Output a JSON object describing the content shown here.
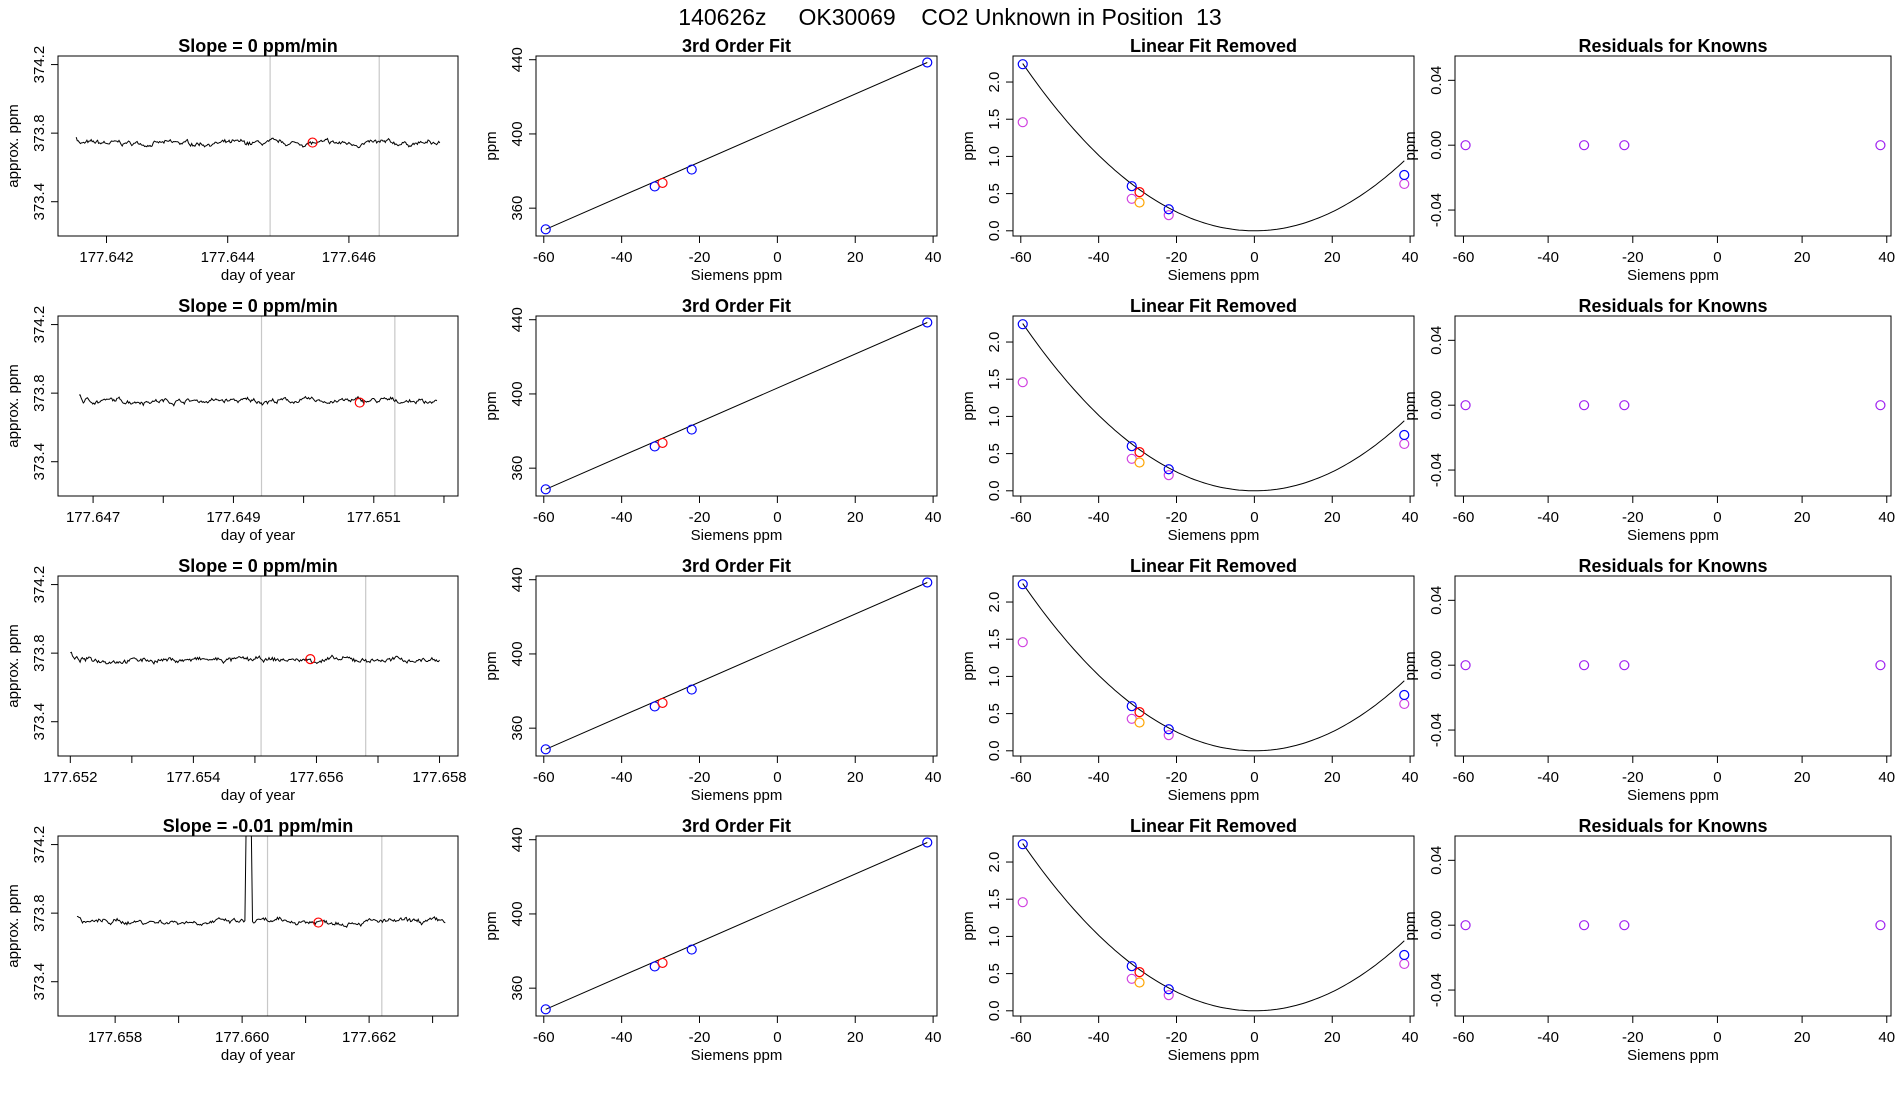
{
  "page_title": "140626z     OK30069    CO2 Unknown in Position  13",
  "colors": {
    "trace": "#000000",
    "marker_highlight": "#ff0000",
    "window_line": "#c8c8c8",
    "standards": "#0000ff",
    "magenta_points": "#d040e0",
    "orange_points": "#ffa500",
    "residual_points": "#a020f0"
  },
  "chart_data": [
    {
      "row": 1,
      "type": "line",
      "title": "Slope =  0  ppm/min",
      "xlabel": "day of year",
      "ylabel": "approx. ppm",
      "xlim": [
        177.6412,
        177.6478
      ],
      "ylim": [
        373.2,
        374.25
      ],
      "xticks": [
        177.642,
        177.644,
        177.646
      ],
      "xtick_labels": [
        "177.642",
        "177.644",
        "177.646"
      ],
      "yticks": [
        373.4,
        373.8,
        374.2
      ],
      "ytick_labels": [
        "373.4",
        "373.8",
        "374.2"
      ],
      "x_start": 177.6415,
      "x_end": 177.6475,
      "baseline": 373.74,
      "window_lines": [
        177.6447,
        177.6465
      ],
      "marker": {
        "x": 177.6454,
        "y": 373.745
      },
      "spike": null
    },
    {
      "row": 2,
      "type": "line",
      "title": "Slope =  0  ppm/min",
      "xlabel": "day of year",
      "ylabel": "approx. ppm",
      "xlim": [
        177.6465,
        177.6522
      ],
      "ylim": [
        373.2,
        374.25
      ],
      "xticks": [
        177.647,
        177.648,
        177.649,
        177.65,
        177.651,
        177.652
      ],
      "xtick_labels": [
        "177.647",
        "",
        "177.649",
        "",
        "177.651",
        ""
      ],
      "yticks": [
        373.4,
        373.8,
        374.2
      ],
      "ytick_labels": [
        "373.4",
        "373.8",
        "374.2"
      ],
      "x_start": 177.6468,
      "x_end": 177.6519,
      "baseline": 373.755,
      "window_lines": [
        177.6494,
        177.6513
      ],
      "marker": {
        "x": 177.6508,
        "y": 373.745
      },
      "spike": null
    },
    {
      "row": 3,
      "type": "line",
      "title": "Slope =  0  ppm/min",
      "xlabel": "day of year",
      "ylabel": "approx. ppm",
      "xlim": [
        177.6518,
        177.6583
      ],
      "ylim": [
        373.2,
        374.25
      ],
      "xticks": [
        177.652,
        177.653,
        177.654,
        177.655,
        177.656,
        177.657,
        177.658
      ],
      "xtick_labels": [
        "177.652",
        "",
        "177.654",
        "",
        "177.656",
        "",
        "177.658"
      ],
      "yticks": [
        373.4,
        373.8,
        374.2
      ],
      "ytick_labels": [
        "373.4",
        "373.8",
        "374.2"
      ],
      "x_start": 177.652,
      "x_end": 177.658,
      "baseline": 373.76,
      "window_lines": [
        177.6551,
        177.6568
      ],
      "marker": {
        "x": 177.6559,
        "y": 373.765
      },
      "spike": null
    },
    {
      "row": 4,
      "type": "line",
      "title": "Slope =  -0.01  ppm/min",
      "xlabel": "day of year",
      "ylabel": "approx. ppm",
      "xlim": [
        177.6571,
        177.6634
      ],
      "ylim": [
        373.2,
        374.25
      ],
      "xticks": [
        177.658,
        177.659,
        177.66,
        177.661,
        177.662,
        177.663
      ],
      "xtick_labels": [
        "177.658",
        "",
        "177.660",
        "",
        "177.662",
        ""
      ],
      "yticks": [
        373.4,
        373.8,
        374.2
      ],
      "ytick_labels": [
        "373.4",
        "373.8",
        "374.2"
      ],
      "x_start": 177.6574,
      "x_end": 177.6632,
      "baseline": 373.75,
      "window_lines": [
        177.6604,
        177.6622
      ],
      "marker": {
        "x": 177.6612,
        "y": 373.745
      },
      "spike": {
        "x1": 177.66005,
        "x2": 177.66015
      }
    },
    {
      "type": "scatter",
      "title": "3rd Order Fit",
      "xlabel": "Siemens ppm",
      "ylabel": "ppm",
      "xlim": [
        -62,
        41
      ],
      "ylim": [
        345,
        442
      ],
      "xticks": [
        -60,
        -40,
        -20,
        0,
        20,
        40
      ],
      "yticks": [
        360,
        400,
        440
      ],
      "fit_line": [
        [
          -59.5,
          348.6
        ],
        [
          38.5,
          438.5
        ]
      ],
      "blue_points": [
        [
          -59.5,
          348.6
        ],
        [
          -31.5,
          371.7
        ],
        [
          -22,
          380.8
        ],
        [
          38.5,
          438.5
        ]
      ],
      "red_points": [
        [
          -29.5,
          373.6
        ]
      ]
    },
    {
      "type": "scatter",
      "title": "Linear Fit Removed",
      "xlabel": "Siemens ppm",
      "ylabel": "ppm",
      "xlim": [
        -62,
        41
      ],
      "ylim": [
        -0.07,
        2.35
      ],
      "xticks": [
        -60,
        -40,
        -20,
        0,
        20,
        40
      ],
      "yticks": [
        0.0,
        0.5,
        1.0,
        1.5,
        2.0
      ],
      "ytick_labels": [
        "0.0",
        "0.5",
        "1.0",
        "1.5",
        "2.0"
      ],
      "curve_a": 0.000635,
      "blue_points": [
        [
          -59.5,
          2.24
        ],
        [
          -31.5,
          0.6
        ],
        [
          -22,
          0.29
        ],
        [
          38.5,
          0.75
        ]
      ],
      "magenta_points": [
        [
          -59.5,
          1.46
        ],
        [
          -31.5,
          0.43
        ],
        [
          -22,
          0.21
        ],
        [
          38.5,
          0.63
        ]
      ],
      "red_points": [
        [
          -29.5,
          0.52
        ]
      ],
      "orange_points": [
        [
          -29.5,
          0.38
        ]
      ]
    },
    {
      "type": "scatter",
      "title": "Residuals for Knowns",
      "xlabel": "Siemens ppm",
      "ylabel": "ppm",
      "xlim": [
        -62,
        41
      ],
      "ylim": [
        -0.056,
        0.055
      ],
      "xticks": [
        -60,
        -40,
        -20,
        0,
        20,
        40
      ],
      "yticks": [
        -0.04,
        0.0,
        0.04
      ],
      "ytick_labels": [
        "-0.04",
        "0.00",
        "0.04"
      ],
      "points": [
        [
          -59.5,
          0
        ],
        [
          -31.5,
          0
        ],
        [
          -22,
          0
        ],
        [
          38.5,
          0
        ]
      ]
    }
  ]
}
